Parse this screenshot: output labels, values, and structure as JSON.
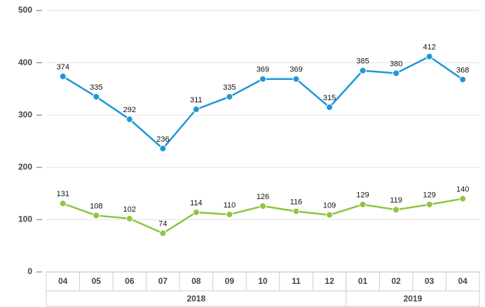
{
  "chart_data": {
    "type": "line",
    "groups": [
      {
        "label": "2018",
        "categories": [
          "04",
          "05",
          "06",
          "07",
          "08",
          "09",
          "10",
          "11",
          "12"
        ]
      },
      {
        "label": "2019",
        "categories": [
          "01",
          "02",
          "03",
          "04"
        ]
      }
    ],
    "series": [
      {
        "color": "#1e96d8",
        "values": [
          374,
          335,
          292,
          236,
          311,
          335,
          369,
          369,
          315,
          385,
          380,
          412,
          368
        ]
      },
      {
        "color": "#8cc63e",
        "values": [
          131,
          108,
          102,
          74,
          114,
          110,
          126,
          116,
          109,
          129,
          119,
          129,
          140
        ]
      }
    ],
    "ylim": [
      0,
      500
    ],
    "yticks": [
      0,
      100,
      200,
      300,
      400,
      500
    ],
    "grid": true
  }
}
